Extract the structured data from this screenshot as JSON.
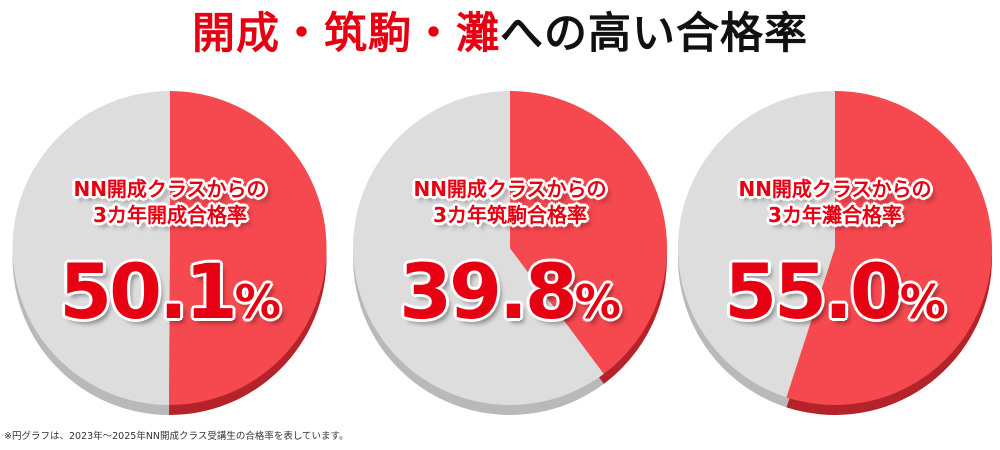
{
  "headline": {
    "accent": "開成・筑駒・灘",
    "base": "への高い合格率"
  },
  "footnote": "※円グラフは、2023年〜2025年NN開成クラス受講生の合格率を表しています。",
  "colors": {
    "accent": "#e60012",
    "slice": "#f5484f",
    "slice_dark": "#b5232a",
    "rest": "#dddddd",
    "rest_dark": "#b9b9b9"
  },
  "chart_data": [
    {
      "type": "pie",
      "label_line1": "NN開成クラスからの",
      "label_line2": "3カ年開成合格率",
      "value_text": "50.1",
      "unit": "%",
      "values": [
        50.1,
        49.9
      ]
    },
    {
      "type": "pie",
      "label_line1": "NN開成クラスからの",
      "label_line2": "3カ年筑駒合格率",
      "value_text": "39.8",
      "unit": "%",
      "values": [
        39.8,
        60.2
      ]
    },
    {
      "type": "pie",
      "label_line1": "NN開成クラスからの",
      "label_line2": "3カ年灘合格率",
      "value_text": "55.0",
      "unit": "%",
      "values": [
        55.0,
        45.0
      ]
    }
  ]
}
